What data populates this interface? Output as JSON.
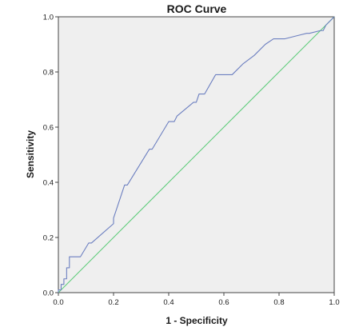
{
  "chart_data": {
    "type": "line",
    "title": "ROC Curve",
    "xlabel": "1 - Specificity",
    "ylabel": "Sensitivity",
    "xlim": [
      0,
      1
    ],
    "ylim": [
      0,
      1
    ],
    "x_ticks": [
      "0.0",
      "0.2",
      "0.4",
      "0.6",
      "0.8",
      "1.0"
    ],
    "y_ticks": [
      "0.0",
      "0.2",
      "0.4",
      "0.6",
      "0.8",
      "1.0"
    ],
    "grid": false,
    "legend": "none",
    "series": [
      {
        "role": "roc-curve",
        "color": "#6c7fc0",
        "x": [
          0.0,
          0.0,
          0.01,
          0.01,
          0.02,
          0.02,
          0.03,
          0.03,
          0.04,
          0.04,
          0.08,
          0.11,
          0.12,
          0.2,
          0.2,
          0.24,
          0.25,
          0.33,
          0.34,
          0.4,
          0.42,
          0.43,
          0.49,
          0.5,
          0.51,
          0.52,
          0.53,
          0.57,
          0.63,
          0.67,
          0.71,
          0.75,
          0.78,
          0.82,
          0.86,
          0.9,
          0.91,
          0.95,
          0.96,
          0.97,
          1.0
        ],
        "y": [
          0.0,
          0.01,
          0.01,
          0.03,
          0.03,
          0.05,
          0.05,
          0.09,
          0.09,
          0.13,
          0.13,
          0.18,
          0.18,
          0.25,
          0.27,
          0.39,
          0.39,
          0.52,
          0.52,
          0.62,
          0.62,
          0.64,
          0.69,
          0.69,
          0.72,
          0.72,
          0.72,
          0.79,
          0.79,
          0.83,
          0.86,
          0.9,
          0.92,
          0.92,
          0.93,
          0.94,
          0.94,
          0.95,
          0.95,
          0.97,
          1.0
        ]
      },
      {
        "role": "reference-line",
        "color": "#5dcc7a",
        "x": [
          0,
          1
        ],
        "y": [
          0,
          1
        ]
      }
    ]
  },
  "colors": {
    "plot_background": "#efefef",
    "axis": "#444444"
  }
}
